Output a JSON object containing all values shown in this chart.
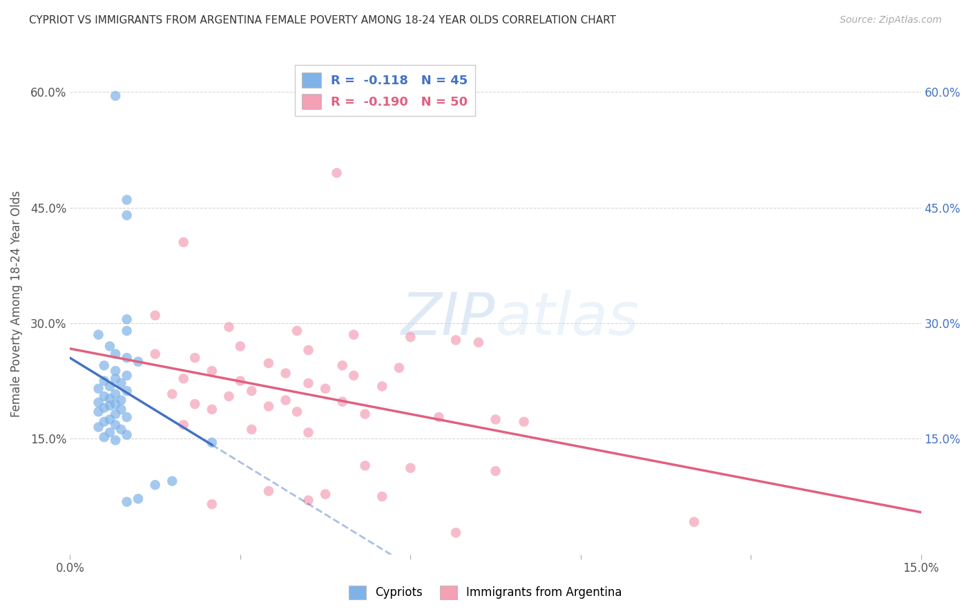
{
  "title": "CYPRIOT VS IMMIGRANTS FROM ARGENTINA FEMALE POVERTY AMONG 18-24 YEAR OLDS CORRELATION CHART",
  "source": "Source: ZipAtlas.com",
  "ylabel": "Female Poverty Among 18-24 Year Olds",
  "xlim": [
    0.0,
    0.15
  ],
  "ylim": [
    0.0,
    0.65
  ],
  "cypriot_color": "#7fb3e8",
  "argentina_color": "#f4a0b5",
  "cypriot_line_color": "#4472c4",
  "argentina_line_color": "#e06080",
  "cypriot_scatter": [
    [
      0.008,
      0.595
    ],
    [
      0.01,
      0.46
    ],
    [
      0.01,
      0.44
    ],
    [
      0.01,
      0.305
    ],
    [
      0.01,
      0.29
    ],
    [
      0.005,
      0.285
    ],
    [
      0.007,
      0.27
    ],
    [
      0.008,
      0.26
    ],
    [
      0.01,
      0.255
    ],
    [
      0.012,
      0.25
    ],
    [
      0.006,
      0.245
    ],
    [
      0.008,
      0.238
    ],
    [
      0.01,
      0.232
    ],
    [
      0.008,
      0.228
    ],
    [
      0.006,
      0.225
    ],
    [
      0.009,
      0.222
    ],
    [
      0.007,
      0.218
    ],
    [
      0.005,
      0.215
    ],
    [
      0.01,
      0.212
    ],
    [
      0.008,
      0.208
    ],
    [
      0.006,
      0.205
    ],
    [
      0.007,
      0.202
    ],
    [
      0.009,
      0.2
    ],
    [
      0.005,
      0.197
    ],
    [
      0.008,
      0.195
    ],
    [
      0.007,
      0.193
    ],
    [
      0.006,
      0.19
    ],
    [
      0.009,
      0.188
    ],
    [
      0.005,
      0.185
    ],
    [
      0.008,
      0.182
    ],
    [
      0.01,
      0.178
    ],
    [
      0.007,
      0.175
    ],
    [
      0.006,
      0.172
    ],
    [
      0.008,
      0.168
    ],
    [
      0.005,
      0.165
    ],
    [
      0.009,
      0.162
    ],
    [
      0.007,
      0.158
    ],
    [
      0.01,
      0.155
    ],
    [
      0.006,
      0.152
    ],
    [
      0.008,
      0.148
    ],
    [
      0.025,
      0.145
    ],
    [
      0.018,
      0.095
    ],
    [
      0.015,
      0.09
    ],
    [
      0.012,
      0.072
    ],
    [
      0.01,
      0.068
    ]
  ],
  "argentina_scatter": [
    [
      0.047,
      0.495
    ],
    [
      0.02,
      0.405
    ],
    [
      0.015,
      0.31
    ],
    [
      0.028,
      0.295
    ],
    [
      0.04,
      0.29
    ],
    [
      0.05,
      0.285
    ],
    [
      0.06,
      0.282
    ],
    [
      0.068,
      0.278
    ],
    [
      0.072,
      0.275
    ],
    [
      0.03,
      0.27
    ],
    [
      0.042,
      0.265
    ],
    [
      0.015,
      0.26
    ],
    [
      0.022,
      0.255
    ],
    [
      0.035,
      0.248
    ],
    [
      0.048,
      0.245
    ],
    [
      0.058,
      0.242
    ],
    [
      0.025,
      0.238
    ],
    [
      0.038,
      0.235
    ],
    [
      0.05,
      0.232
    ],
    [
      0.02,
      0.228
    ],
    [
      0.03,
      0.225
    ],
    [
      0.042,
      0.222
    ],
    [
      0.055,
      0.218
    ],
    [
      0.045,
      0.215
    ],
    [
      0.032,
      0.212
    ],
    [
      0.018,
      0.208
    ],
    [
      0.028,
      0.205
    ],
    [
      0.038,
      0.2
    ],
    [
      0.048,
      0.198
    ],
    [
      0.022,
      0.195
    ],
    [
      0.035,
      0.192
    ],
    [
      0.025,
      0.188
    ],
    [
      0.04,
      0.185
    ],
    [
      0.052,
      0.182
    ],
    [
      0.065,
      0.178
    ],
    [
      0.075,
      0.175
    ],
    [
      0.08,
      0.172
    ],
    [
      0.02,
      0.168
    ],
    [
      0.032,
      0.162
    ],
    [
      0.042,
      0.158
    ],
    [
      0.052,
      0.115
    ],
    [
      0.06,
      0.112
    ],
    [
      0.075,
      0.108
    ],
    [
      0.035,
      0.082
    ],
    [
      0.045,
      0.078
    ],
    [
      0.055,
      0.075
    ],
    [
      0.042,
      0.07
    ],
    [
      0.025,
      0.065
    ],
    [
      0.11,
      0.042
    ],
    [
      0.068,
      0.028
    ]
  ],
  "watermark_zip": "ZIP",
  "watermark_atlas": "atlas",
  "background_color": "#ffffff",
  "grid_color": "#cccccc",
  "cyp_line_x_end": 0.028,
  "arg_line_intercept": 0.215,
  "arg_line_slope": -0.8
}
